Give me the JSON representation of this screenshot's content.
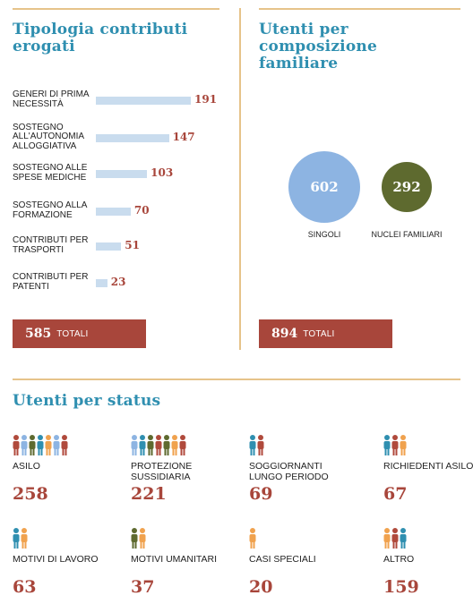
{
  "contributi": {
    "title": "Tipologia contributi erogati",
    "total_value": "585",
    "total_label": "TOTALI"
  },
  "composizione": {
    "title": "Utenti per composizione familiare",
    "total_value": "894",
    "total_label": "TOTALI"
  },
  "status": {
    "title": "Utenti per status"
  },
  "chart_data": [
    {
      "type": "bar",
      "title": "Tipologia contributi erogati",
      "categories": [
        "GENERI DI PRIMA NECESSITÀ",
        "SOSTEGNO ALL'AUTONOMIA ALLOGGIATIVA",
        "SOSTEGNO ALLE SPESE MEDICHE",
        "SOSTEGNO ALLA FORMAZIONE",
        "CONTRIBUTI PER TRASPORTI",
        "CONTRIBUTI PER PATENTI"
      ],
      "values": [
        191,
        147,
        103,
        70,
        51,
        23
      ],
      "orientation": "horizontal",
      "bar_color": "#c9dcee",
      "value_color": "#a8463b"
    },
    {
      "type": "bubble",
      "title": "Utenti per composizione familiare",
      "categories": [
        "SINGOLI",
        "NUCLEI FAMILIARI"
      ],
      "values": [
        602,
        292
      ],
      "colors": [
        "#8db4e2",
        "#5e6a2f"
      ]
    },
    {
      "type": "table",
      "title": "Utenti per status",
      "categories": [
        "ASILO",
        "PROTEZIONE SUSSIDIARIA",
        "SOGGIORNANTI LUNGO PERIODO",
        "RICHIEDENTI ASILO",
        "MOTIVI DI LAVORO",
        "MOTIVI UMANITARI",
        "CASI SPECIALI",
        "ALTRO"
      ],
      "values": [
        258,
        221,
        69,
        67,
        63,
        37,
        20,
        159
      ]
    }
  ],
  "colors": {
    "title": "#2f8fb0",
    "accent": "#a8463b",
    "rule": "#e6c38a",
    "person_palette": [
      "#b04a3c",
      "#8db4e2",
      "#5e6a2f",
      "#2f8fb0",
      "#f0a24e"
    ]
  },
  "icons": {
    "status_person": "person-icon"
  }
}
